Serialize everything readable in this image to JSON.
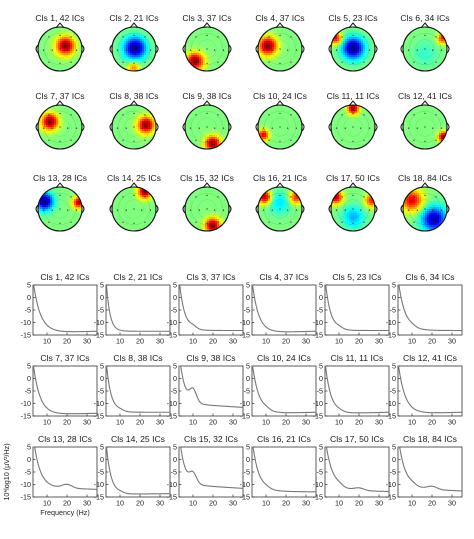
{
  "figure": {
    "clusters": [
      {
        "label": "Cls 1, 42 ICs",
        "blobs": [
          {
            "c": [
              0.25,
              -0.15
            ],
            "s": 0.3,
            "a": 1.0
          }
        ]
      },
      {
        "label": "Cls 2, 21 ICs",
        "blobs": [
          {
            "c": [
              0.05,
              -0.05
            ],
            "s": 0.35,
            "a": -1.0
          },
          {
            "c": [
              0.0,
              0.85
            ],
            "s": 0.2,
            "a": 0.5
          }
        ]
      },
      {
        "label": "Cls 3, 37 ICs",
        "blobs": [
          {
            "c": [
              -0.55,
              0.55
            ],
            "s": 0.28,
            "a": 1.0
          }
        ]
      },
      {
        "label": "Cls 4, 37 ICs",
        "blobs": [
          {
            "c": [
              -0.55,
              -0.15
            ],
            "s": 0.3,
            "a": 1.0
          }
        ]
      },
      {
        "label": "Cls 5, 23 ICs",
        "blobs": [
          {
            "c": [
              0.0,
              -0.05
            ],
            "s": 0.35,
            "a": -1.0
          },
          {
            "c": [
              -0.8,
              -0.5
            ],
            "s": 0.2,
            "a": 0.8
          }
        ]
      },
      {
        "label": "Cls 6, 34 ICs",
        "blobs": [
          {
            "c": [
              0.8,
              -0.5
            ],
            "s": 0.18,
            "a": 0.7
          },
          {
            "c": [
              0.0,
              0.2
            ],
            "s": 0.4,
            "a": -0.15
          }
        ]
      },
      {
        "label": "Cls 7, 37 ICs",
        "blobs": [
          {
            "c": [
              -0.45,
              -0.25
            ],
            "s": 0.27,
            "a": 1.0
          }
        ]
      },
      {
        "label": "Cls 8, 38 ICs",
        "blobs": [
          {
            "c": [
              0.55,
              -0.1
            ],
            "s": 0.27,
            "a": 1.0
          }
        ]
      },
      {
        "label": "Cls 9, 38 ICs",
        "blobs": [
          {
            "c": [
              0.25,
              0.75
            ],
            "s": 0.25,
            "a": 1.0
          }
        ]
      },
      {
        "label": "Cls 10, 24 ICs",
        "blobs": [
          {
            "c": [
              -0.75,
              0.35
            ],
            "s": 0.18,
            "a": 0.8
          }
        ]
      },
      {
        "label": "Cls 11, 11 ICs",
        "blobs": [
          {
            "c": [
              0.0,
              -0.85
            ],
            "s": 0.18,
            "a": 1.0
          }
        ]
      },
      {
        "label": "Cls 12, 41 ICs",
        "blobs": [
          {
            "c": [
              0.85,
              0.45
            ],
            "s": 0.18,
            "a": 1.0
          }
        ]
      },
      {
        "label": "Cls 13, 28 ICs",
        "blobs": [
          {
            "c": [
              -0.7,
              -0.35
            ],
            "s": 0.28,
            "a": -1.0
          },
          {
            "c": [
              0.85,
              -0.3
            ],
            "s": 0.18,
            "a": 0.9
          }
        ]
      },
      {
        "label": "Cls 14, 25 ICs",
        "blobs": [
          {
            "c": [
              0.5,
              -0.8
            ],
            "s": 0.22,
            "a": 1.0
          }
        ]
      },
      {
        "label": "Cls 15, 32 ICs",
        "blobs": [
          {
            "c": [
              0.25,
              0.75
            ],
            "s": 0.25,
            "a": 1.0
          }
        ]
      },
      {
        "label": "Cls 16, 21 ICs",
        "blobs": [
          {
            "c": [
              -0.7,
              -0.55
            ],
            "s": 0.22,
            "a": 0.9
          },
          {
            "c": [
              0.75,
              -0.55
            ],
            "s": 0.22,
            "a": 0.7
          },
          {
            "c": [
              0.0,
              -0.3
            ],
            "s": 0.35,
            "a": -0.3
          }
        ]
      },
      {
        "label": "Cls 17, 50 ICs",
        "blobs": [
          {
            "c": [
              0.0,
              0.35
            ],
            "s": 0.35,
            "a": -0.4
          },
          {
            "c": [
              -0.8,
              -0.55
            ],
            "s": 0.22,
            "a": 0.9
          },
          {
            "c": [
              0.85,
              -0.4
            ],
            "s": 0.22,
            "a": 0.7
          }
        ]
      },
      {
        "label": "Cls 18, 84 ICs",
        "blobs": [
          {
            "c": [
              -0.6,
              -0.4
            ],
            "s": 0.35,
            "a": 0.8
          },
          {
            "c": [
              0.4,
              0.45
            ],
            "s": 0.4,
            "a": -0.9
          }
        ]
      }
    ],
    "spectra": {
      "yticks": [
        5,
        0,
        -5,
        -10,
        -15
      ],
      "xticks": [
        10,
        20,
        30
      ],
      "xlim": [
        3,
        35
      ],
      "ylim": [
        -15,
        5
      ],
      "ylabel": "10*log10 (µV²/Hz)",
      "xlabel": "Frequency (Hz)",
      "series": [
        {
          "label": "Cls 1, 42 ICs",
          "params": {
            "a": 21,
            "k": 0.28,
            "base": -13.8,
            "alpha": 0,
            "beta": 0,
            "tilt": 0.02
          }
        },
        {
          "label": "Cls 2, 21 ICs",
          "params": {
            "a": 21,
            "k": 0.55,
            "base": -13.5,
            "alpha": 0,
            "beta": 0,
            "tilt": 0.0
          }
        },
        {
          "label": "Cls 3, 37 ICs",
          "params": {
            "a": 21,
            "k": 0.38,
            "base": -13.2,
            "alpha": 1.0,
            "beta": 0,
            "tilt": 0.0
          }
        },
        {
          "label": "Cls 4, 37 ICs",
          "params": {
            "a": 21,
            "k": 0.32,
            "base": -13.8,
            "alpha": 0,
            "beta": 0,
            "tilt": 0.02
          }
        },
        {
          "label": "Cls 5, 23 ICs",
          "params": {
            "a": 21,
            "k": 0.38,
            "base": -13.2,
            "alpha": 0.6,
            "beta": 0,
            "tilt": 0.0
          }
        },
        {
          "label": "Cls 6, 34 ICs",
          "params": {
            "a": 21,
            "k": 0.3,
            "base": -13.2,
            "alpha": 0.5,
            "beta": 0,
            "tilt": 0.0
          }
        },
        {
          "label": "Cls 7, 37 ICs",
          "params": {
            "a": 21,
            "k": 0.3,
            "base": -14.2,
            "alpha": 0,
            "beta": 0,
            "tilt": 0.02
          }
        },
        {
          "label": "Cls 8, 38 ICs",
          "params": {
            "a": 21,
            "k": 0.42,
            "base": -13.5,
            "alpha": 0.5,
            "beta": 0,
            "tilt": 0.0
          }
        },
        {
          "label": "Cls 9, 38 ICs",
          "params": {
            "a": 21,
            "k": 0.38,
            "base": -10.8,
            "alpha": 5.0,
            "beta": 0,
            "tilt": -0.05
          }
        },
        {
          "label": "Cls 10, 24 ICs",
          "params": {
            "a": 21,
            "k": 0.3,
            "base": -13.8,
            "alpha": 0.6,
            "beta": 0,
            "tilt": 0.02
          }
        },
        {
          "label": "Cls 11, 11 ICs",
          "params": {
            "a": 21,
            "k": 0.35,
            "base": -13.8,
            "alpha": 0.4,
            "beta": 0,
            "tilt": 0.02
          }
        },
        {
          "label": "Cls 12, 41 ICs",
          "params": {
            "a": 21,
            "k": 0.3,
            "base": -13.8,
            "alpha": 0,
            "beta": 0,
            "tilt": 0.02
          }
        },
        {
          "label": "Cls 13, 28 ICs",
          "params": {
            "a": 21,
            "k": 0.32,
            "base": -11.5,
            "alpha": 0,
            "beta": 1.5,
            "tilt": -0.03
          }
        },
        {
          "label": "Cls 14, 25 ICs",
          "params": {
            "a": 21,
            "k": 0.42,
            "base": -13.8,
            "alpha": 0.4,
            "beta": 0,
            "tilt": 0.01
          }
        },
        {
          "label": "Cls 15, 32 ICs",
          "params": {
            "a": 21,
            "k": 0.38,
            "base": -10.8,
            "alpha": 4.0,
            "beta": 0,
            "tilt": -0.05
          }
        },
        {
          "label": "Cls 16, 21 ICs",
          "params": {
            "a": 21,
            "k": 0.32,
            "base": -12.8,
            "alpha": 0.5,
            "beta": 0,
            "tilt": -0.01
          }
        },
        {
          "label": "Cls 17, 50 ICs",
          "params": {
            "a": 21,
            "k": 0.28,
            "base": -12.5,
            "alpha": 0.6,
            "beta": 1.0,
            "tilt": -0.02
          }
        },
        {
          "label": "Cls 18, 84 ICs",
          "params": {
            "a": 21,
            "k": 0.3,
            "base": -12.0,
            "alpha": 0.6,
            "beta": 1.2,
            "tilt": -0.04
          }
        }
      ]
    }
  }
}
